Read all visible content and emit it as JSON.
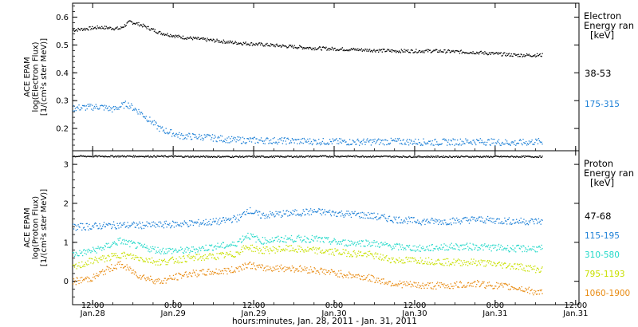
{
  "chart_data": [
    {
      "type": "scatter",
      "ylabel": [
        "ACE EPAM",
        "log(Electron Flux)",
        "[1/(cm²s ster MeV)]"
      ],
      "ylim": [
        0.12,
        0.65
      ],
      "y_ticks": [
        0.2,
        0.3,
        0.4,
        0.5,
        0.6
      ],
      "y_tick_labels": [
        "0.2",
        "0.3",
        "0.4",
        "0.5",
        "0.6"
      ],
      "legend_title": [
        "Electron",
        "Energy ran",
        "[keV]"
      ],
      "legend_placement": "right",
      "grid": false,
      "series": [
        {
          "name": "38-53",
          "color": "#000000",
          "x": [
            0,
            8,
            14,
            17,
            20,
            26,
            32,
            40,
            48,
            60,
            72,
            84,
            96,
            108,
            120,
            132,
            140
          ],
          "y": [
            0.555,
            0.565,
            0.56,
            0.585,
            0.575,
            0.545,
            0.53,
            0.52,
            0.51,
            0.5,
            0.49,
            0.485,
            0.48,
            0.48,
            0.475,
            0.465,
            0.465
          ]
        },
        {
          "name": "175-315",
          "color": "#1b7fd6",
          "x": [
            0,
            8,
            12,
            16,
            20,
            26,
            32,
            40,
            48,
            60,
            72,
            84,
            96,
            108,
            120,
            132,
            140
          ],
          "y": [
            0.275,
            0.28,
            0.27,
            0.29,
            0.26,
            0.2,
            0.175,
            0.17,
            0.16,
            0.158,
            0.155,
            0.153,
            0.155,
            0.152,
            0.155,
            0.15,
            0.155
          ]
        }
      ]
    },
    {
      "type": "scatter",
      "ylabel": [
        "ACE EPAM",
        "log(Proton Flux)",
        "[1/(cm²s ster MeV)]"
      ],
      "ylim": [
        -0.6,
        3.35
      ],
      "y_ticks": [
        0,
        1,
        2,
        3
      ],
      "y_tick_labels": [
        "0",
        "1",
        "2",
        "3"
      ],
      "legend_title": [
        "Proton",
        "Energy ran",
        "[keV]"
      ],
      "legend_placement": "right",
      "grid": false,
      "series": [
        {
          "name": "47-68",
          "color": "#000000",
          "x": [
            0,
            20,
            40,
            60,
            80,
            100,
            120,
            140
          ],
          "y": [
            3.22,
            3.22,
            3.21,
            3.21,
            3.22,
            3.21,
            3.21,
            3.21
          ]
        },
        {
          "name": "115-195",
          "color": "#1b7fd6",
          "x": [
            0,
            12,
            24,
            36,
            44,
            50,
            52,
            56,
            64,
            72,
            80,
            88,
            96,
            104,
            112,
            120,
            132,
            140
          ],
          "y": [
            1.4,
            1.45,
            1.45,
            1.5,
            1.55,
            1.65,
            1.85,
            1.7,
            1.75,
            1.8,
            1.75,
            1.7,
            1.6,
            1.55,
            1.55,
            1.6,
            1.55,
            1.55
          ]
        },
        {
          "name": "310-580",
          "color": "#20d8c8",
          "x": [
            0,
            6,
            10,
            14,
            20,
            26,
            34,
            42,
            48,
            52,
            56,
            64,
            72,
            80,
            88,
            96,
            104,
            112,
            120,
            132,
            140
          ],
          "y": [
            0.7,
            0.8,
            0.9,
            1.05,
            0.9,
            0.8,
            0.8,
            0.9,
            0.95,
            1.2,
            1.05,
            1.1,
            1.1,
            1.0,
            1.0,
            0.9,
            0.85,
            0.9,
            0.9,
            0.85,
            0.85
          ]
        },
        {
          "name": "795-1193",
          "color": "#c8e000",
          "x": [
            0,
            6,
            10,
            14,
            20,
            26,
            34,
            42,
            48,
            52,
            56,
            64,
            72,
            80,
            88,
            96,
            104,
            112,
            120,
            132,
            140
          ],
          "y": [
            0.35,
            0.55,
            0.6,
            0.7,
            0.6,
            0.5,
            0.6,
            0.65,
            0.7,
            0.9,
            0.8,
            0.85,
            0.8,
            0.75,
            0.7,
            0.55,
            0.55,
            0.5,
            0.5,
            0.4,
            0.3
          ]
        },
        {
          "name": "1060-1900",
          "color": "#e88a10",
          "x": [
            0,
            6,
            10,
            14,
            20,
            26,
            34,
            42,
            48,
            52,
            56,
            64,
            72,
            80,
            88,
            96,
            104,
            112,
            120,
            132,
            140
          ],
          "y": [
            0.0,
            0.1,
            0.3,
            0.45,
            0.15,
            0.0,
            0.2,
            0.25,
            0.3,
            0.45,
            0.35,
            0.35,
            0.3,
            0.2,
            0.1,
            -0.05,
            -0.1,
            -0.1,
            -0.05,
            -0.15,
            -0.3
          ]
        }
      ]
    }
  ],
  "x_axis": {
    "xlim": [
      0,
      151
    ],
    "ticks_hours": [
      6,
      30,
      54,
      78,
      102,
      126,
      150
    ],
    "tick_time_labels": [
      "12:00",
      "0:00",
      "12:00",
      "0:00",
      "12:00",
      "0:00",
      "12:00"
    ],
    "tick_date_labels": [
      "Jan.28",
      "Jan.29",
      "Jan.29",
      "Jan.30",
      "Jan.30",
      "Jan.31",
      "Jan.31"
    ],
    "xlabel": "hours:minutes, Jan. 28, 2011 - Jan. 31, 2011"
  }
}
